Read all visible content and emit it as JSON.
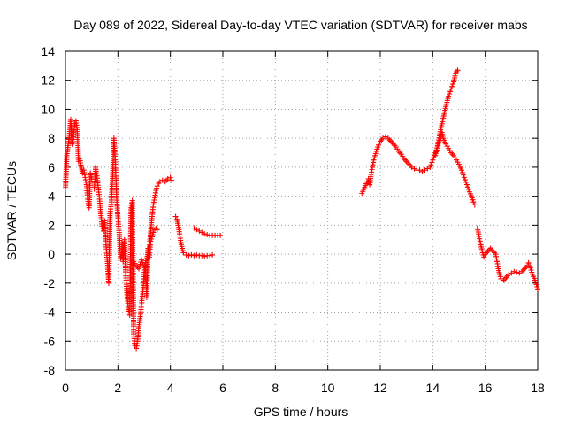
{
  "chart_data": {
    "type": "scatter",
    "title": "Day 089 of 2022, Sidereal Day-to-day VTEC variation (SDTVAR) for receiver mabs",
    "xlabel": "GPS time / hours",
    "ylabel": "SDTVAR / TECUs",
    "xlim": [
      0,
      18
    ],
    "ylim": [
      -8,
      14
    ],
    "xticks": [
      0,
      2,
      4,
      6,
      8,
      10,
      12,
      14,
      16,
      18
    ],
    "yticks": [
      -8,
      -6,
      -4,
      -2,
      0,
      2,
      4,
      6,
      8,
      10,
      12,
      14
    ],
    "grid": true,
    "marker": "plus",
    "color": "#ff0000",
    "series": [
      {
        "name": "SDTVAR segment 1",
        "points": [
          [
            0.0,
            4.5
          ],
          [
            0.05,
            6.8
          ],
          [
            0.1,
            7.5
          ],
          [
            0.15,
            8.2
          ],
          [
            0.2,
            9.3
          ],
          [
            0.25,
            7.6
          ],
          [
            0.3,
            8.1
          ],
          [
            0.35,
            9.0
          ],
          [
            0.4,
            9.2
          ],
          [
            0.45,
            8.6
          ],
          [
            0.5,
            6.4
          ],
          [
            0.55,
            6.6
          ],
          [
            0.6,
            6.0
          ],
          [
            0.65,
            5.6
          ],
          [
            0.7,
            5.8
          ],
          [
            0.75,
            5.3
          ],
          [
            0.8,
            4.8
          ],
          [
            0.85,
            3.8
          ],
          [
            0.9,
            3.2
          ],
          [
            0.95,
            5.6
          ],
          [
            1.0,
            5.2
          ]
        ]
      },
      {
        "name": "SDTVAR segment 2",
        "points": [
          [
            1.1,
            4.5
          ],
          [
            1.15,
            6.0
          ],
          [
            1.2,
            5.4
          ],
          [
            1.25,
            4.6
          ],
          [
            1.3,
            3.8
          ],
          [
            1.35,
            2.8
          ],
          [
            1.4,
            1.8
          ],
          [
            1.45,
            1.6
          ],
          [
            1.5,
            2.3
          ],
          [
            1.55,
            0.5
          ],
          [
            1.6,
            -0.5
          ],
          [
            1.65,
            -2.0
          ],
          [
            1.7,
            2.8
          ],
          [
            1.75,
            3.6
          ],
          [
            1.8,
            5.5
          ],
          [
            1.85,
            8.0
          ],
          [
            1.9,
            6.5
          ],
          [
            1.95,
            4.0
          ],
          [
            2.0,
            2.5
          ],
          [
            2.05,
            1.5
          ],
          [
            2.1,
            -0.3
          ]
        ]
      },
      {
        "name": "SDTVAR segment 3",
        "points": [
          [
            2.15,
            0.8
          ],
          [
            2.2,
            -0.5
          ],
          [
            2.25,
            1.0
          ],
          [
            2.3,
            -1.5
          ],
          [
            2.35,
            -2.8
          ],
          [
            2.4,
            -3.8
          ],
          [
            2.45,
            -4.2
          ],
          [
            2.5,
            3.2
          ],
          [
            2.55,
            3.7
          ],
          [
            2.6,
            -5.5
          ],
          [
            2.65,
            -6.3
          ],
          [
            2.7,
            -6.5
          ],
          [
            2.75,
            -6.0
          ],
          [
            2.8,
            -5.0
          ],
          [
            2.85,
            -4.3
          ],
          [
            2.9,
            -3.5
          ],
          [
            2.95,
            -2.6
          ],
          [
            3.0,
            -1.4
          ],
          [
            3.05,
            -0.8
          ],
          [
            3.1,
            -3.0
          ],
          [
            3.15,
            0.4
          ],
          [
            3.2,
            -0.2
          ],
          [
            3.25,
            0.9
          ],
          [
            3.3,
            1.2
          ],
          [
            3.35,
            1.5
          ],
          [
            3.4,
            1.7
          ],
          [
            3.45,
            1.8
          ],
          [
            3.5,
            1.7
          ]
        ]
      },
      {
        "name": "SDTVAR segment 4",
        "points": [
          [
            2.6,
            -0.5
          ],
          [
            2.7,
            -0.8
          ],
          [
            2.8,
            -1.0
          ],
          [
            2.9,
            -0.4
          ],
          [
            3.0,
            -0.9
          ],
          [
            3.1,
            -0.3
          ],
          [
            3.2,
            0.5
          ],
          [
            3.25,
            1.6
          ],
          [
            3.3,
            2.6
          ],
          [
            3.35,
            3.4
          ],
          [
            3.4,
            3.9
          ],
          [
            3.45,
            4.4
          ],
          [
            3.5,
            4.7
          ],
          [
            3.55,
            4.9
          ],
          [
            3.6,
            5.0
          ],
          [
            3.7,
            5.1
          ],
          [
            3.8,
            5.0
          ],
          [
            3.9,
            5.2
          ],
          [
            4.0,
            5.3
          ],
          [
            4.05,
            5.1
          ]
        ]
      },
      {
        "name": "SDTVAR segment 5",
        "points": [
          [
            4.2,
            2.6
          ],
          [
            4.25,
            2.4
          ],
          [
            4.3,
            2.0
          ],
          [
            4.35,
            1.4
          ],
          [
            4.4,
            0.8
          ],
          [
            4.45,
            0.4
          ],
          [
            4.5,
            0.1
          ],
          [
            4.6,
            -0.05
          ],
          [
            4.7,
            -0.1
          ],
          [
            4.8,
            -0.05
          ],
          [
            4.9,
            -0.1
          ],
          [
            5.0,
            -0.05
          ],
          [
            5.1,
            -0.1
          ],
          [
            5.2,
            -0.1
          ],
          [
            5.3,
            -0.15
          ],
          [
            5.4,
            -0.1
          ],
          [
            5.5,
            -0.1
          ],
          [
            5.6,
            -0.05
          ]
        ]
      },
      {
        "name": "SDTVAR segment 6",
        "points": [
          [
            4.9,
            1.8
          ],
          [
            5.0,
            1.7
          ],
          [
            5.1,
            1.6
          ],
          [
            5.2,
            1.5
          ],
          [
            5.3,
            1.4
          ],
          [
            5.4,
            1.35
          ],
          [
            5.5,
            1.3
          ],
          [
            5.6,
            1.3
          ],
          [
            5.7,
            1.3
          ],
          [
            5.8,
            1.3
          ],
          [
            5.9,
            1.3
          ]
        ]
      },
      {
        "name": "SDTVAR segment 7",
        "points": [
          [
            11.3,
            4.2
          ],
          [
            11.4,
            4.6
          ],
          [
            11.5,
            5.0
          ],
          [
            11.55,
            5.2
          ],
          [
            11.6,
            4.8
          ],
          [
            11.65,
            5.5
          ],
          [
            11.7,
            6.0
          ],
          [
            11.75,
            6.5
          ],
          [
            11.8,
            6.8
          ],
          [
            11.85,
            7.1
          ],
          [
            11.9,
            7.4
          ],
          [
            12.0,
            7.8
          ],
          [
            12.1,
            8.0
          ],
          [
            12.2,
            8.1
          ],
          [
            12.3,
            8.0
          ],
          [
            12.4,
            7.8
          ],
          [
            12.5,
            7.6
          ],
          [
            12.6,
            7.4
          ],
          [
            12.7,
            7.1
          ],
          [
            12.8,
            6.9
          ],
          [
            12.9,
            6.6
          ],
          [
            13.0,
            6.4
          ],
          [
            13.1,
            6.2
          ],
          [
            13.2,
            6.0
          ],
          [
            13.3,
            5.9
          ],
          [
            13.4,
            5.8
          ],
          [
            13.5,
            5.8
          ],
          [
            13.6,
            5.7
          ],
          [
            13.7,
            5.8
          ],
          [
            13.8,
            5.9
          ],
          [
            13.9,
            6.0
          ],
          [
            14.0,
            6.5
          ],
          [
            14.1,
            7.0
          ],
          [
            14.2,
            7.5
          ],
          [
            14.3,
            8.0
          ],
          [
            14.35,
            8.4
          ],
          [
            14.4,
            8.0
          ],
          [
            14.5,
            7.6
          ],
          [
            14.6,
            7.3
          ],
          [
            14.7,
            7.0
          ],
          [
            14.8,
            6.8
          ],
          [
            14.9,
            6.5
          ],
          [
            15.0,
            6.2
          ],
          [
            15.1,
            5.8
          ],
          [
            15.2,
            5.3
          ],
          [
            15.3,
            4.8
          ],
          [
            15.4,
            4.3
          ],
          [
            15.5,
            3.9
          ],
          [
            15.55,
            3.6
          ],
          [
            15.6,
            3.4
          ]
        ]
      },
      {
        "name": "SDTVAR segment 8",
        "points": [
          [
            14.1,
            6.8
          ],
          [
            14.2,
            7.6
          ],
          [
            14.3,
            8.6
          ],
          [
            14.4,
            9.4
          ],
          [
            14.5,
            10.2
          ],
          [
            14.6,
            10.9
          ],
          [
            14.7,
            11.4
          ],
          [
            14.8,
            11.9
          ],
          [
            14.85,
            12.3
          ],
          [
            14.9,
            12.6
          ],
          [
            14.95,
            12.7
          ]
        ]
      },
      {
        "name": "SDTVAR segment 9",
        "points": [
          [
            15.7,
            1.8
          ],
          [
            15.75,
            1.4
          ],
          [
            15.8,
            0.9
          ],
          [
            15.85,
            0.5
          ],
          [
            15.9,
            0.1
          ],
          [
            15.95,
            -0.2
          ],
          [
            16.0,
            0.0
          ],
          [
            16.1,
            0.2
          ],
          [
            16.2,
            0.4
          ],
          [
            16.3,
            0.2
          ],
          [
            16.4,
            0.0
          ],
          [
            16.45,
            -0.5
          ],
          [
            16.5,
            -1.0
          ],
          [
            16.55,
            -1.4
          ],
          [
            16.6,
            -1.7
          ],
          [
            16.7,
            -1.8
          ],
          [
            16.8,
            -1.6
          ],
          [
            16.9,
            -1.4
          ],
          [
            17.0,
            -1.3
          ],
          [
            17.1,
            -1.2
          ],
          [
            17.2,
            -1.25
          ],
          [
            17.3,
            -1.3
          ],
          [
            17.4,
            -1.2
          ],
          [
            17.5,
            -1.0
          ],
          [
            17.6,
            -0.8
          ],
          [
            17.65,
            -0.6
          ],
          [
            17.7,
            -0.8
          ],
          [
            17.8,
            -1.4
          ],
          [
            17.9,
            -1.8
          ],
          [
            17.95,
            -2.1
          ],
          [
            18.0,
            -2.4
          ]
        ]
      }
    ]
  }
}
